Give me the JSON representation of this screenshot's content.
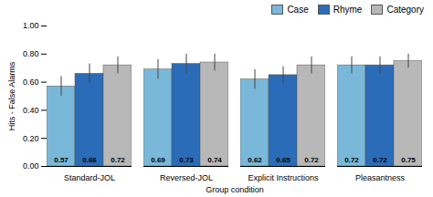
{
  "chart_data": {
    "type": "bar",
    "categories": [
      "Standard-JOL",
      "Reversed-JOL",
      "Explicit Instructions",
      "Pleasantness"
    ],
    "series": [
      {
        "name": "Case",
        "color": "#7ab8d9",
        "values": [
          0.57,
          0.69,
          0.62,
          0.72
        ],
        "errors": [
          0.07,
          0.07,
          0.07,
          0.06
        ]
      },
      {
        "name": "Rhyme",
        "color": "#2b6cb8",
        "values": [
          0.66,
          0.73,
          0.65,
          0.72
        ],
        "errors": [
          0.07,
          0.07,
          0.06,
          0.06
        ]
      },
      {
        "name": "Category",
        "color": "#b8b8b8",
        "values": [
          0.72,
          0.74,
          0.72,
          0.75
        ],
        "errors": [
          0.06,
          0.06,
          0.06,
          0.05
        ]
      }
    ],
    "xlabel": "Group condition",
    "ylabel": "Hits - False Alarms",
    "ylim": [
      0.0,
      1.0
    ],
    "yticks": [
      {
        "value": 0,
        "label": "0.00"
      },
      {
        "value": 0.2,
        "label": "0.20"
      },
      {
        "value": 0.4,
        "label": "0.40"
      },
      {
        "value": 0.6,
        "label": "0.60"
      },
      {
        "value": 0.8,
        "label": "0.80"
      },
      {
        "value": 1.0,
        "label": "1.00"
      }
    ],
    "grid": false,
    "legend": "upper right",
    "data_labels": true
  }
}
